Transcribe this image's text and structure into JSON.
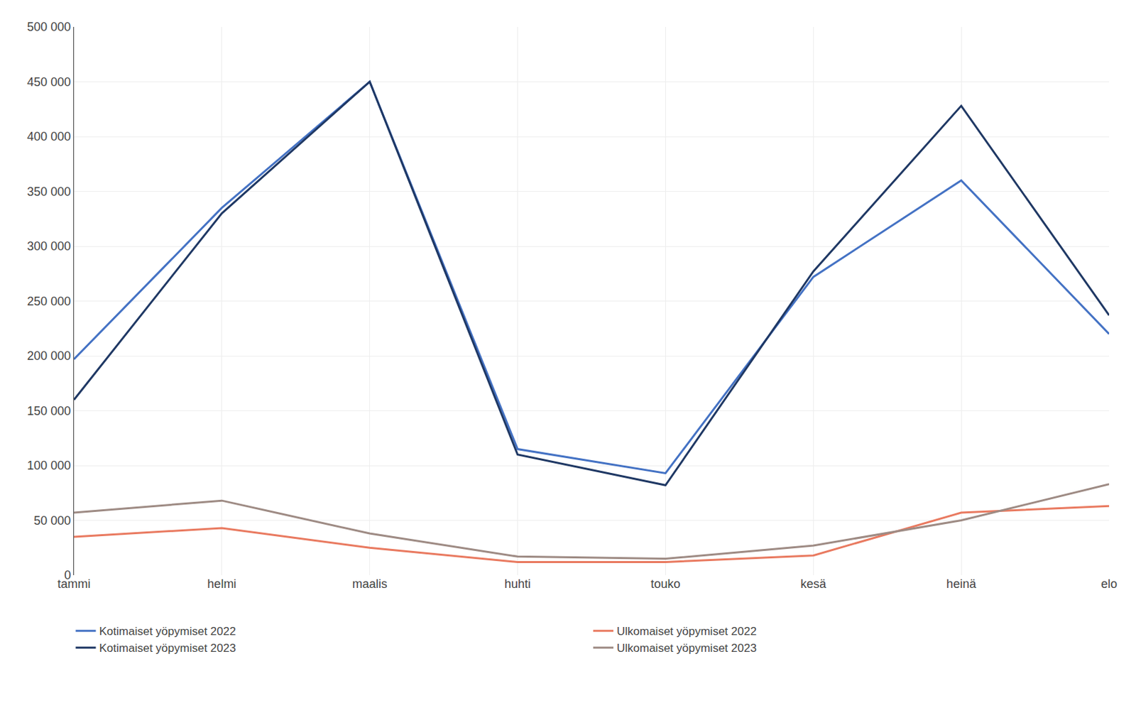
{
  "chart_data": {
    "type": "line",
    "categories": [
      "tammi",
      "helmi",
      "maalis",
      "huhti",
      "touko",
      "kesä",
      "heinä",
      "elo"
    ],
    "series": [
      {
        "name": "Kotimaiset yöpymiset 2022",
        "color": "#4472C4",
        "values": [
          197000,
          335000,
          450000,
          115000,
          93000,
          272000,
          360000,
          220000
        ]
      },
      {
        "name": "Ulkomaiset yöpymiset 2022",
        "color": "#E97A60",
        "values": [
          35000,
          43000,
          25000,
          12000,
          12000,
          18000,
          57000,
          63000
        ]
      },
      {
        "name": "Kotimaiset yöpymiset 2023",
        "color": "#1F3864",
        "values": [
          160000,
          330000,
          450000,
          110000,
          82000,
          277000,
          428000,
          237000
        ]
      },
      {
        "name": "Ulkomaiset yöpymiset 2023",
        "color": "#9E8B84",
        "values": [
          57000,
          68000,
          38000,
          17000,
          15000,
          27000,
          50000,
          83000
        ]
      }
    ],
    "ylim": [
      0,
      500000
    ],
    "yticks": [
      0,
      {
        "value": 50000,
        "label": "50 000"
      },
      {
        "value": 100000,
        "label": "100 000"
      },
      {
        "value": 150000,
        "label": "150 000"
      },
      {
        "value": 200000,
        "label": "200 000"
      },
      {
        "value": 250000,
        "label": "250 000"
      },
      {
        "value": 300000,
        "label": "300 000"
      },
      {
        "value": 350000,
        "label": "350 000"
      },
      {
        "value": 400000,
        "label": "400 000"
      },
      {
        "value": 450000,
        "label": "450 000"
      },
      {
        "value": 500000,
        "label": "500 000"
      }
    ],
    "grid": true,
    "legend": "bottom"
  }
}
